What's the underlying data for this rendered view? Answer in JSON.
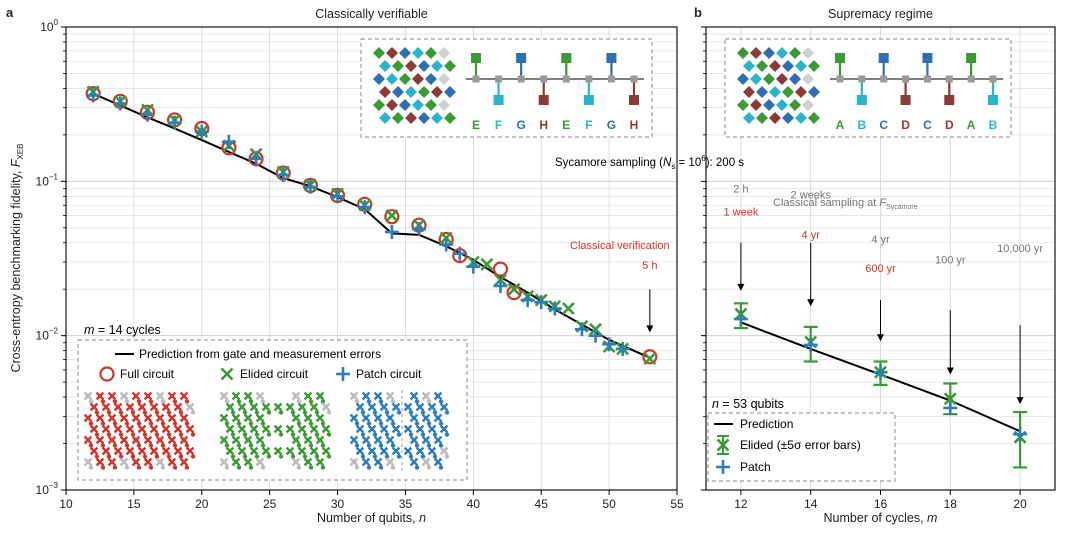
{
  "chart_data": [
    {
      "panel_letter": "a",
      "type": "scatter",
      "title": "Classically verifiable",
      "xlabel": "Number of qubits, n",
      "ylabel": "Cross-entropy benchmarking fidelity, F_XEB",
      "ylabel_main": "Cross-entropy benchmarking fidelity, ",
      "ylabel_symbol": "F",
      "ylabel_sub": "XEB",
      "xlim": [
        10,
        55
      ],
      "ylim": [
        0.001,
        1
      ],
      "yscale": "log",
      "x_ticks": [
        10,
        15,
        20,
        25,
        30,
        35,
        40,
        45,
        50,
        55
      ],
      "y_ticks": [
        {
          "value": 1,
          "base": "10",
          "exp": "0"
        },
        {
          "value": 0.1,
          "base": "10",
          "exp": "−1"
        },
        {
          "value": 0.01,
          "base": "10",
          "exp": "−2"
        },
        {
          "value": 0.001,
          "base": "10",
          "exp": "−3"
        }
      ],
      "series": [
        {
          "name": "Prediction from gate and measurement errors",
          "type": "line",
          "color": "#000000",
          "x": [
            12,
            14,
            16,
            18,
            20,
            22,
            24,
            26,
            28,
            30,
            32,
            34,
            36,
            38,
            40,
            42,
            44,
            46,
            48,
            50,
            53
          ],
          "y": [
            0.37,
            0.31,
            0.26,
            0.22,
            0.185,
            0.155,
            0.13,
            0.105,
            0.093,
            0.079,
            0.066,
            0.046,
            0.045,
            0.038,
            0.031,
            0.024,
            0.019,
            0.0148,
            0.0118,
            0.0094,
            0.0072
          ]
        },
        {
          "name": "Full circuit",
          "type": "scatter",
          "marker": "circle",
          "color": "#d1342b",
          "x": [
            12,
            14,
            16,
            18,
            20,
            22,
            24,
            26,
            28,
            30,
            32,
            34,
            36,
            38,
            39,
            42,
            43,
            53
          ],
          "y": [
            0.37,
            0.33,
            0.28,
            0.25,
            0.22,
            0.165,
            0.14,
            0.113,
            0.094,
            0.081,
            0.071,
            0.059,
            0.052,
            0.042,
            0.033,
            0.027,
            0.019,
            0.0073
          ]
        },
        {
          "name": "Elided circuit",
          "type": "scatter",
          "marker": "x",
          "color": "#3a9a34",
          "x": [
            12,
            14,
            16,
            18,
            20,
            22,
            24,
            26,
            28,
            30,
            32,
            34,
            36,
            38,
            40,
            41,
            42,
            43,
            44,
            45,
            46,
            47,
            48,
            49,
            50,
            51,
            53
          ],
          "y": [
            0.38,
            0.33,
            0.29,
            0.25,
            0.21,
            0.17,
            0.15,
            0.115,
            0.095,
            0.083,
            0.07,
            0.06,
            0.052,
            0.043,
            0.03,
            0.029,
            0.023,
            0.02,
            0.018,
            0.017,
            0.0155,
            0.015,
            0.0115,
            0.011,
            0.0085,
            0.0082,
            0.0071
          ]
        },
        {
          "name": "Patch circuit",
          "type": "scatter",
          "marker": "plus",
          "color": "#2d7dbd",
          "x": [
            12,
            14,
            16,
            18,
            20,
            22,
            24,
            26,
            28,
            30,
            32,
            34,
            36,
            38,
            39,
            40,
            42,
            44,
            45,
            46,
            48,
            49,
            50,
            51
          ],
          "y": [
            0.36,
            0.32,
            0.27,
            0.24,
            0.21,
            0.18,
            0.14,
            0.11,
            0.092,
            0.08,
            0.068,
            0.047,
            0.049,
            0.039,
            0.034,
            0.028,
            0.021,
            0.017,
            0.0165,
            0.015,
            0.011,
            0.01,
            0.0088,
            0.0082
          ]
        }
      ],
      "annotations": {
        "cycles_label": "m = 14 cycles",
        "cycles_var": "m",
        "cycles_rest": " = 14 cycles",
        "classical_verification": "Classical verification",
        "arrow_label": "5 h",
        "arrow_x": 53,
        "arrow_y_top": 0.02,
        "arrow_y_bottom": 0.0105,
        "circuit_labels": [
          "E",
          "F",
          "G",
          "H",
          "E",
          "F",
          "G",
          "H"
        ],
        "circuit_label_colors": [
          "#3a9a34",
          "#2bb3cc",
          "#2d6fb0",
          "#8b3a35",
          "#3a9a34",
          "#2bb3cc",
          "#2d6fb0",
          "#8b3a35"
        ]
      }
    },
    {
      "panel_letter": "b",
      "type": "scatter",
      "title": "Supremacy regime",
      "xlabel": "Number of cycles, m",
      "xlim": [
        11,
        21
      ],
      "ylim": [
        0.001,
        1
      ],
      "yscale": "log",
      "x_ticks": [
        12,
        14,
        16,
        18,
        20
      ],
      "series": [
        {
          "name": "Prediction",
          "type": "line",
          "color": "#000000",
          "x": [
            12,
            14,
            16,
            18,
            20
          ],
          "y": [
            0.0122,
            0.0082,
            0.0056,
            0.0038,
            0.0024
          ]
        },
        {
          "name": "Elided (±5σ error bars)",
          "type": "errorbar",
          "marker": "x",
          "color": "#3a9a34",
          "x": [
            12,
            14,
            16,
            18,
            20
          ],
          "y": [
            0.0138,
            0.0091,
            0.0058,
            0.0039,
            0.0022
          ],
          "err_low": [
            0.0112,
            0.0068,
            0.0048,
            0.0031,
            0.0014
          ],
          "err_high": [
            0.0162,
            0.0114,
            0.0068,
            0.0049,
            0.0032
          ]
        },
        {
          "name": "Patch",
          "type": "scatter",
          "marker": "plus",
          "color": "#2d7dbd",
          "x": [
            12,
            14,
            16,
            18,
            20
          ],
          "y": [
            0.0128,
            0.0087,
            0.0058,
            0.0034,
            0.0023
          ]
        }
      ],
      "annotations": {
        "sycamore_prefix": "Sycamore sampling (",
        "sycamore_var": "N",
        "sycamore_sub": "s",
        "sycamore_mid": " = 10",
        "sycamore_sup": "6",
        "sycamore_suffix": "): 200 s",
        "classical_title": "Classical sampling at ",
        "classical_symbol": "F",
        "classical_sub": "Sycamore",
        "qubits_var": "n",
        "qubits_rest": " = 53 qubits",
        "times": [
          {
            "x": 12,
            "y_top": 0.04,
            "y_bottom": 0.0195,
            "gray": "2 h",
            "red": "1 week"
          },
          {
            "x": 14,
            "y_top": 0.04,
            "y_bottom": 0.0155,
            "gray": "2 weeks",
            "red": "4 yr"
          },
          {
            "x": 16,
            "y_top": 0.017,
            "y_bottom": 0.0092,
            "gray": "4 yr",
            "red": "600 yr"
          },
          {
            "x": 18,
            "y_top": 0.0146,
            "y_bottom": 0.0056,
            "gray": "100 yr",
            "red": ""
          },
          {
            "x": 20,
            "y_top": 0.0117,
            "y_bottom": 0.0036,
            "gray": "10,000 yr",
            "red": ""
          }
        ],
        "circuit_labels": [
          "A",
          "B",
          "C",
          "D",
          "C",
          "D",
          "A",
          "B"
        ],
        "circuit_label_colors": [
          "#3a9a34",
          "#2bb3cc",
          "#2d6fb0",
          "#8b3a35",
          "#2d6fb0",
          "#8b3a35",
          "#3a9a34",
          "#2bb3cc"
        ]
      }
    }
  ]
}
